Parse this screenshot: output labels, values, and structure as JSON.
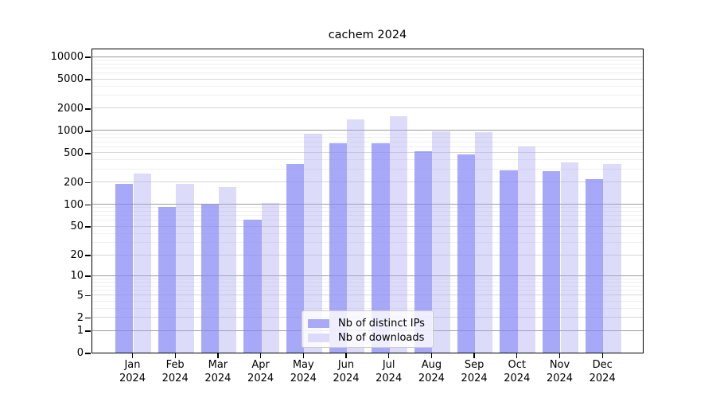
{
  "title": "cachem 2024",
  "chart_data": {
    "type": "bar",
    "scale": "log1p",
    "title": "cachem 2024",
    "xlabel": "",
    "ylabel": "",
    "grid": "horizontal",
    "legend_position": "lower center",
    "categories": [
      "Jan 2024",
      "Feb 2024",
      "Mar 2024",
      "Apr 2024",
      "May 2024",
      "Jun 2024",
      "Jul 2024",
      "Aug 2024",
      "Sep 2024",
      "Oct 2024",
      "Nov 2024",
      "Dec 2024"
    ],
    "series": [
      {
        "name": "Nb of distinct IPs",
        "color": "#a9a9f8",
        "fill_rgba": "rgba(134,134,245,0.72)",
        "values": [
          190,
          93,
          100,
          62,
          355,
          680,
          670,
          530,
          470,
          290,
          280,
          220
        ]
      },
      {
        "name": "Nb of downloads",
        "color": "#dcdcfa",
        "fill_rgba": "rgba(170,170,243,0.41)",
        "values": [
          260,
          190,
          170,
          104,
          900,
          1430,
          1550,
          980,
          950,
          610,
          373,
          350
        ]
      }
    ],
    "y_ticks": [
      0,
      1,
      2,
      5,
      10,
      20,
      50,
      100,
      200,
      500,
      1000,
      2000,
      5000,
      10000
    ],
    "ylim": [
      0,
      13000
    ],
    "grid_colors": {
      "major": "#9b9b9b",
      "labeled": "#d6d6d6",
      "minor": "#efefef"
    }
  }
}
